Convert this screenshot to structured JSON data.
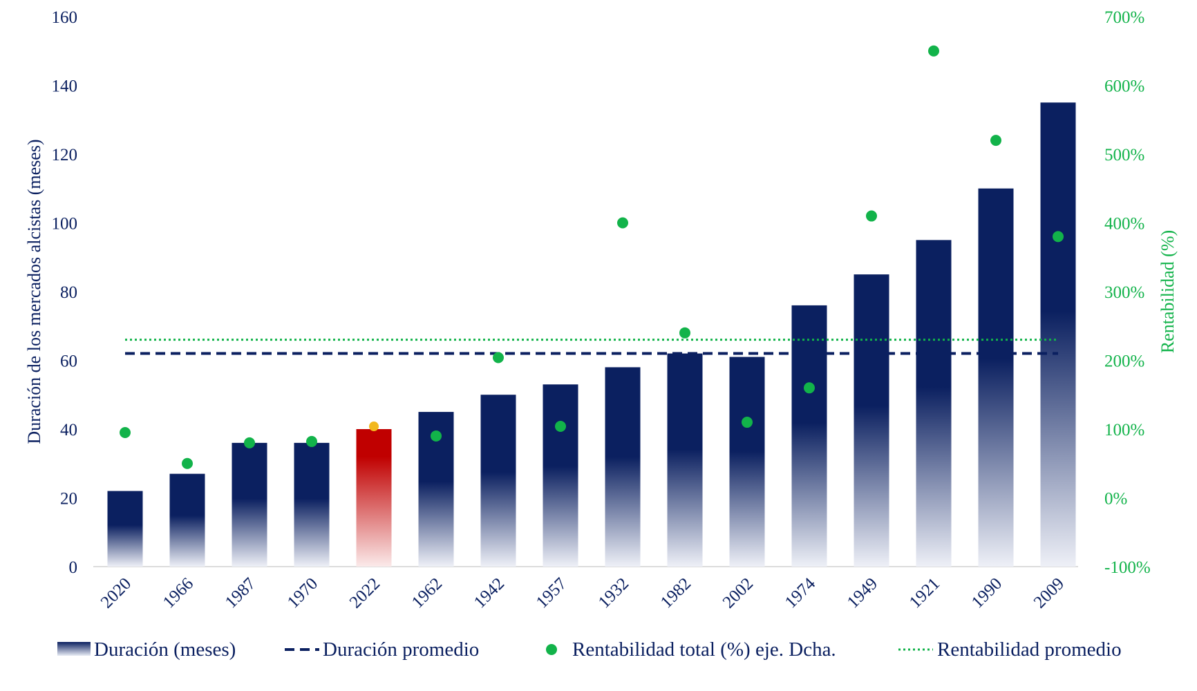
{
  "chart_data": {
    "type": "bar",
    "categories": [
      "2020",
      "1966",
      "1987",
      "1970",
      "2022",
      "1962",
      "1942",
      "1957",
      "1932",
      "1982",
      "2002",
      "1974",
      "1949",
      "1921",
      "1990",
      "2009"
    ],
    "series": [
      {
        "name": "Duración (meses)",
        "type": "bar",
        "axis": "left",
        "values": [
          22,
          27,
          36,
          36,
          40,
          45,
          50,
          53,
          58,
          62,
          61,
          76,
          85,
          95,
          110,
          135
        ],
        "highlight_category": "2022"
      },
      {
        "name": "Duración promedio",
        "type": "line-dashed",
        "axis": "left",
        "value": 62
      },
      {
        "name": "Rentabilidad total (%) eje. Dcha.",
        "type": "scatter",
        "axis": "right",
        "values": [
          95,
          50,
          80,
          82,
          104,
          90,
          204,
          104,
          400,
          240,
          110,
          160,
          410,
          650,
          520,
          380
        ]
      },
      {
        "name": "Rentabilidad promedio",
        "type": "line-dotted",
        "axis": "right",
        "value": 230
      }
    ],
    "ylabel": "Duración de los mercados alcistas (meses)",
    "ylim": [
      0,
      160
    ],
    "yticks": [
      0,
      20,
      40,
      60,
      80,
      100,
      120,
      140,
      160
    ],
    "y2label": "Rentabilidad (%)",
    "y2lim": [
      -100,
      700
    ],
    "y2ticks": [
      "-100%",
      "0%",
      "100%",
      "200%",
      "300%",
      "400%",
      "500%",
      "600%",
      "700%"
    ],
    "y2tick_values": [
      -100,
      0,
      100,
      200,
      300,
      400,
      500,
      600,
      700
    ],
    "grid": false,
    "legend_position": "bottom",
    "colors": {
      "bar": "#0b2060",
      "bar_highlight": "#c00000",
      "avg_duration_line": "#0b2060",
      "scatter": "#12b34a",
      "scatter_highlight": "#f2b81e",
      "avg_return_line": "#12b34a",
      "left_axis_text": "#0b2060",
      "right_axis_text": "#12b34a"
    }
  }
}
